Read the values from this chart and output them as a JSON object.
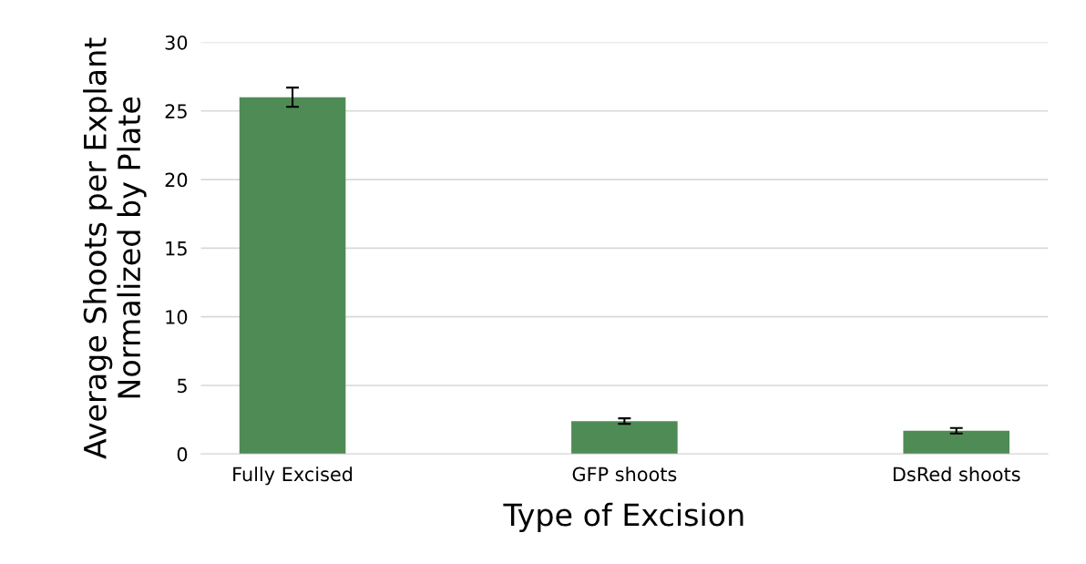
{
  "chart_data": {
    "type": "bar",
    "xlabel": "Type of Excision",
    "ylabel": "Average Shoots per Explant\nNormalized by Plate",
    "categories": [
      "Fully Excised",
      "GFP shoots",
      "DsRed shoots"
    ],
    "values": [
      26.0,
      2.4,
      1.7
    ],
    "errors": [
      0.7,
      0.2,
      0.2
    ],
    "color": "#4f8b55",
    "ylim": [
      0,
      30
    ],
    "yticks": [
      0,
      5,
      10,
      15,
      20,
      25,
      30
    ],
    "grid": "y",
    "legend": false
  }
}
